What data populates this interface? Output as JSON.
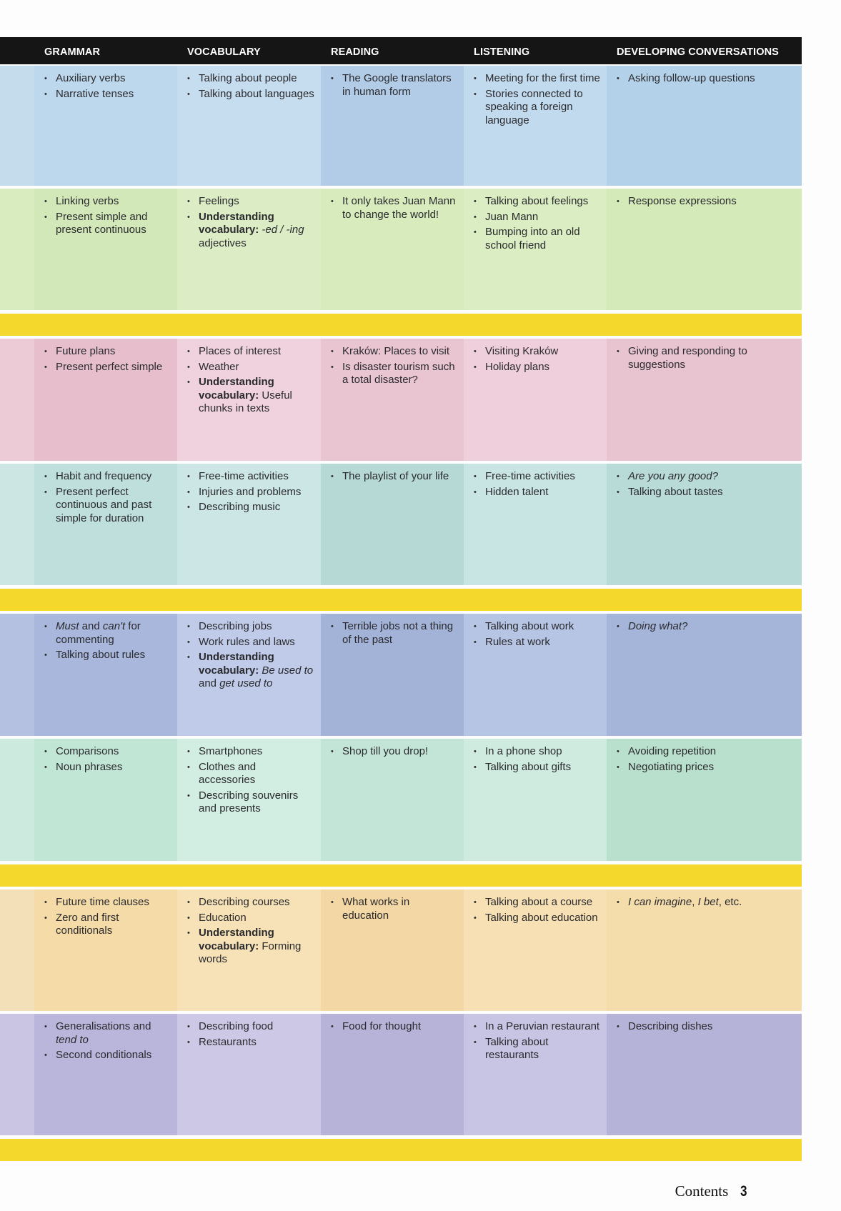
{
  "header": {
    "columns": [
      "GRAMMAR",
      "VOCABULARY",
      "READING",
      "LISTENING",
      "DEVELOPING CONVERSATIONS"
    ]
  },
  "colors": {
    "header_bg": "#151515",
    "band_yellow": "#f4d82c",
    "rows": [
      {
        "strip": "#c5dcec",
        "cols": [
          "#bdd7ec",
          "#c6ddef",
          "#b2cbe6",
          "#c2daee",
          "#b4d1ea"
        ]
      },
      {
        "strip": "#d8ecc0",
        "cols": [
          "#d2e8b8",
          "#dcedc6",
          "#d7ebbd",
          "#dbedc2",
          "#d4eab8"
        ]
      },
      {
        "strip": "#eccbd6",
        "cols": [
          "#e7bfcc",
          "#efd2dd",
          "#e9c4d1",
          "#eecfdb",
          "#e8c3d0"
        ]
      },
      {
        "strip": "#cce6e3",
        "cols": [
          "#bedfdc",
          "#cbe6e4",
          "#b6d9d6",
          "#c9e5e3",
          "#b9dbd8"
        ]
      },
      {
        "strip": "#b4c1e0",
        "cols": [
          "#a8b7db",
          "#bfcbe8",
          "#a3b3d8",
          "#b7c5e5",
          "#a5b5da"
        ]
      },
      {
        "strip": "#cdeadf",
        "cols": [
          "#c2e6d6",
          "#d2ede1",
          "#c3e5d7",
          "#cfebdf",
          "#b9e0cd"
        ]
      },
      {
        "strip": "#f4e0b8",
        "cols": [
          "#f4dba8",
          "#f6e2b6",
          "#f3d7a4",
          "#f6e0b4",
          "#f5dcab"
        ]
      },
      {
        "strip": "#c9c5e2",
        "cols": [
          "#bab5da",
          "#ccc8e5",
          "#b7b2d8",
          "#c8c4e3",
          "#b6b3d9"
        ]
      }
    ]
  },
  "rows": [
    {
      "grammar": [
        "Auxiliary verbs",
        "Narrative tenses"
      ],
      "vocabulary": [
        "Talking about people",
        "Talking about languages"
      ],
      "reading": [
        "The Google translators in human form"
      ],
      "listening": [
        "Meeting for the first time",
        "Stories connected to speaking a foreign language"
      ],
      "developing_conversations": [
        "Asking follow-up questions"
      ]
    },
    {
      "grammar": [
        "Linking verbs",
        "Present simple and present continuous"
      ],
      "vocabulary": [
        "Feelings",
        {
          "bold": "Understanding vocabulary:",
          "italic": "-ed / -ing",
          "text": "adjectives"
        }
      ],
      "reading": [
        "It only takes Juan Mann to change the world!"
      ],
      "listening": [
        "Talking about feelings",
        "Juan Mann",
        "Bumping into an old school friend"
      ],
      "developing_conversations": [
        "Response expressions"
      ]
    },
    {
      "grammar": [
        "Future plans",
        "Present perfect simple"
      ],
      "vocabulary": [
        "Places of interest",
        "Weather",
        {
          "bold": "Understanding vocabulary:",
          "text": "Useful chunks in texts"
        }
      ],
      "reading": [
        "Kraków: Places to visit",
        "Is disaster tourism such a total disaster?"
      ],
      "listening": [
        "Visiting Kraków",
        "Holiday plans"
      ],
      "developing_conversations": [
        "Giving and responding to suggestions"
      ]
    },
    {
      "grammar": [
        "Habit and frequency",
        "Present perfect continuous and past simple for duration"
      ],
      "vocabulary": [
        "Free-time activities",
        "Injuries and problems",
        "Describing music"
      ],
      "reading": [
        "The playlist of your life"
      ],
      "listening": [
        "Free-time activities",
        "Hidden talent"
      ],
      "developing_conversations": [
        {
          "italic_only": "Are you any good?"
        },
        "Talking about tastes"
      ]
    },
    {
      "grammar": [
        {
          "i1": "Must",
          "t1": " and ",
          "i2": "can't",
          "t2": " for commenting"
        },
        "Talking about rules"
      ],
      "vocabulary": [
        "Describing jobs",
        "Work rules and laws",
        {
          "bold": "Understanding vocabulary:",
          "i1": "Be used to",
          "t1": " and ",
          "i2": "get used to"
        }
      ],
      "reading": [
        "Terrible jobs not a thing of the past"
      ],
      "listening": [
        "Talking about work",
        "Rules at work"
      ],
      "developing_conversations": [
        {
          "italic_only": "Doing what?"
        }
      ]
    },
    {
      "grammar": [
        "Comparisons",
        "Noun phrases"
      ],
      "vocabulary": [
        "Smartphones",
        "Clothes and accessories",
        "Describing souvenirs and presents"
      ],
      "reading": [
        "Shop till you drop!"
      ],
      "listening": [
        "In a phone shop",
        "Talking about gifts"
      ],
      "developing_conversations": [
        "Avoiding repetition",
        "Negotiating prices"
      ]
    },
    {
      "grammar": [
        "Future time clauses",
        "Zero and first conditionals"
      ],
      "vocabulary": [
        "Describing courses",
        "Education",
        {
          "bold": "Understanding vocabulary:",
          "text": "Forming words"
        }
      ],
      "reading": [
        "What works in education"
      ],
      "listening": [
        "Talking about a course",
        "Talking about education"
      ],
      "developing_conversations": [
        {
          "i1": "I can imagine",
          "t1": ", ",
          "i2": "I bet",
          "t2": ", etc."
        }
      ]
    },
    {
      "grammar": [
        {
          "t0": "Generalisations and ",
          "i1": "tend to"
        },
        "Second conditionals"
      ],
      "vocabulary": [
        "Describing food",
        "Restaurants"
      ],
      "reading": [
        "Food for thought"
      ],
      "listening": [
        "In a Peruvian restaurant",
        "Talking about restaurants"
      ],
      "developing_conversations": [
        "Describing dishes"
      ]
    }
  ],
  "footer": {
    "label": "Contents",
    "page_number": "3"
  }
}
